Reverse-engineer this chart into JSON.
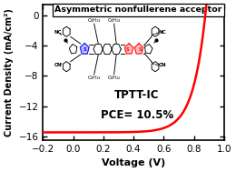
{
  "title": "Asymmetric nonfullerene acceptor",
  "xlabel": "Voltage (V)",
  "ylabel": "Current Density (mA/cm²)",
  "xlim": [
    -0.2,
    1.0
  ],
  "ylim": [
    -16.5,
    1.5
  ],
  "xticks": [
    -0.2,
    0.0,
    0.2,
    0.4,
    0.6,
    0.8,
    1.0
  ],
  "yticks": [
    0,
    -4,
    -8,
    -12,
    -16
  ],
  "curve_color": "#ff0000",
  "background_color": "#ffffff",
  "jsc": -15.5,
  "voc": 0.875,
  "alpha": 12.0,
  "annotation1": "TPTT-IC",
  "annotation2": "PCE= 10.5%",
  "figsize": [
    2.6,
    1.89
  ],
  "dpi": 100
}
